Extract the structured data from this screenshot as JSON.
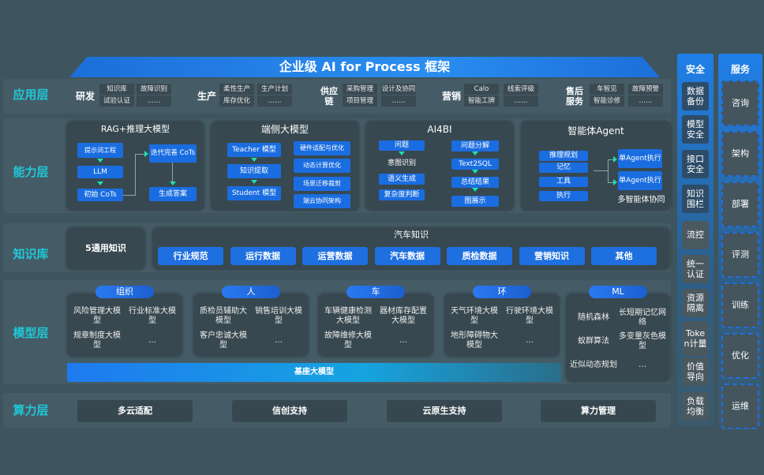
{
  "title": "企业级 AI for Process 框架",
  "layers": [
    "应用层",
    "能力层",
    "知识库",
    "模型层",
    "算力层"
  ],
  "app_groups": [
    {
      "name": "研发",
      "items": [
        "知识库",
        "故障识别",
        "试验认证",
        "……"
      ]
    },
    {
      "name": "生产",
      "items": [
        "柔性生产",
        "生产计划",
        "库存优化",
        "……"
      ]
    },
    {
      "name": "供应链",
      "items": [
        "采购管理",
        "设计及协同",
        "项目管理",
        "……"
      ]
    },
    {
      "name": "营销",
      "items": [
        "Calo",
        "线索评级",
        "智能工牌",
        "……"
      ]
    },
    {
      "name": "售后服务",
      "items": [
        "车智见",
        "故障预警",
        "智能诊修",
        "……"
      ]
    }
  ],
  "capability": {
    "rag": {
      "title": "RAG+推理大模型",
      "items": [
        "提示词工程",
        "LLM",
        "初始 CoTs",
        "迭代完善 CoTs",
        "生成答案"
      ]
    },
    "edge": {
      "title": "端侧大模型",
      "left": [
        "Teacher 模型",
        "知识提取",
        "Student 模型"
      ],
      "right": [
        "硬件适配与优化",
        "动态计算优化",
        "场景迁移裁剪",
        "端云协同架构"
      ]
    },
    "ai4bi": {
      "title": "AI4BI",
      "left": [
        "问题",
        "意图识别",
        "语义生成",
        "复杂度判断"
      ],
      "right": [
        "问题分解",
        "Text2SQL",
        "总结结果",
        "图展示"
      ]
    },
    "agent": {
      "title": "智能体Agent",
      "left": [
        "推理规划",
        "记忆",
        "工具",
        "执行"
      ],
      "right": [
        "单Agent执行",
        "单Agent执行"
      ],
      "footer": "多智能体协同"
    }
  },
  "knowledge": {
    "general": "5通用知识",
    "auto_title": "汽车知识",
    "items": [
      "行业规范",
      "运行数据",
      "运营数据",
      "汽车数据",
      "质检数据",
      "营销知识",
      "其他"
    ]
  },
  "models": {
    "groups": [
      {
        "name": "组织",
        "items": [
          "风险管理大模型",
          "行业标准大模型",
          "规章制度大模型",
          "…"
        ]
      },
      {
        "name": "人",
        "items": [
          "质检员辅助大模型",
          "销售培训大模型",
          "客户忠诚大模型",
          "…"
        ]
      },
      {
        "name": "车",
        "items": [
          "车辆健康检测大模型",
          "器材库存配置大模型",
          "故障维修大模型",
          "…"
        ]
      },
      {
        "name": "环",
        "items": [
          "天气环境大模型",
          "行驶环境大模型",
          "地形障碍物大模型",
          "…"
        ]
      }
    ],
    "ml": {
      "name": "ML",
      "items": [
        "随机森林",
        "长短期记忆网络",
        "蚁群算法",
        "多变量灰色模型",
        "近似动态规划",
        "…"
      ]
    },
    "base": "基座大模型"
  },
  "compute": [
    "多云适配",
    "信创支持",
    "云原生支持",
    "算力管理"
  ],
  "security": {
    "title": "安全",
    "items": [
      "数据备份",
      "模型安全",
      "接口安全",
      "知识围栏",
      "流控",
      "统一认证",
      "资源隔离",
      "Token计量",
      "价值导向",
      "负载均衡"
    ]
  },
  "service": {
    "title": "服务",
    "items": [
      "咨询",
      "架构",
      "部署",
      "评测",
      "训练",
      "优化",
      "运维"
    ]
  },
  "colors": {
    "accent": "#1e6fe0",
    "layer_label": "#1fc8d8",
    "background": "#3e545e"
  }
}
